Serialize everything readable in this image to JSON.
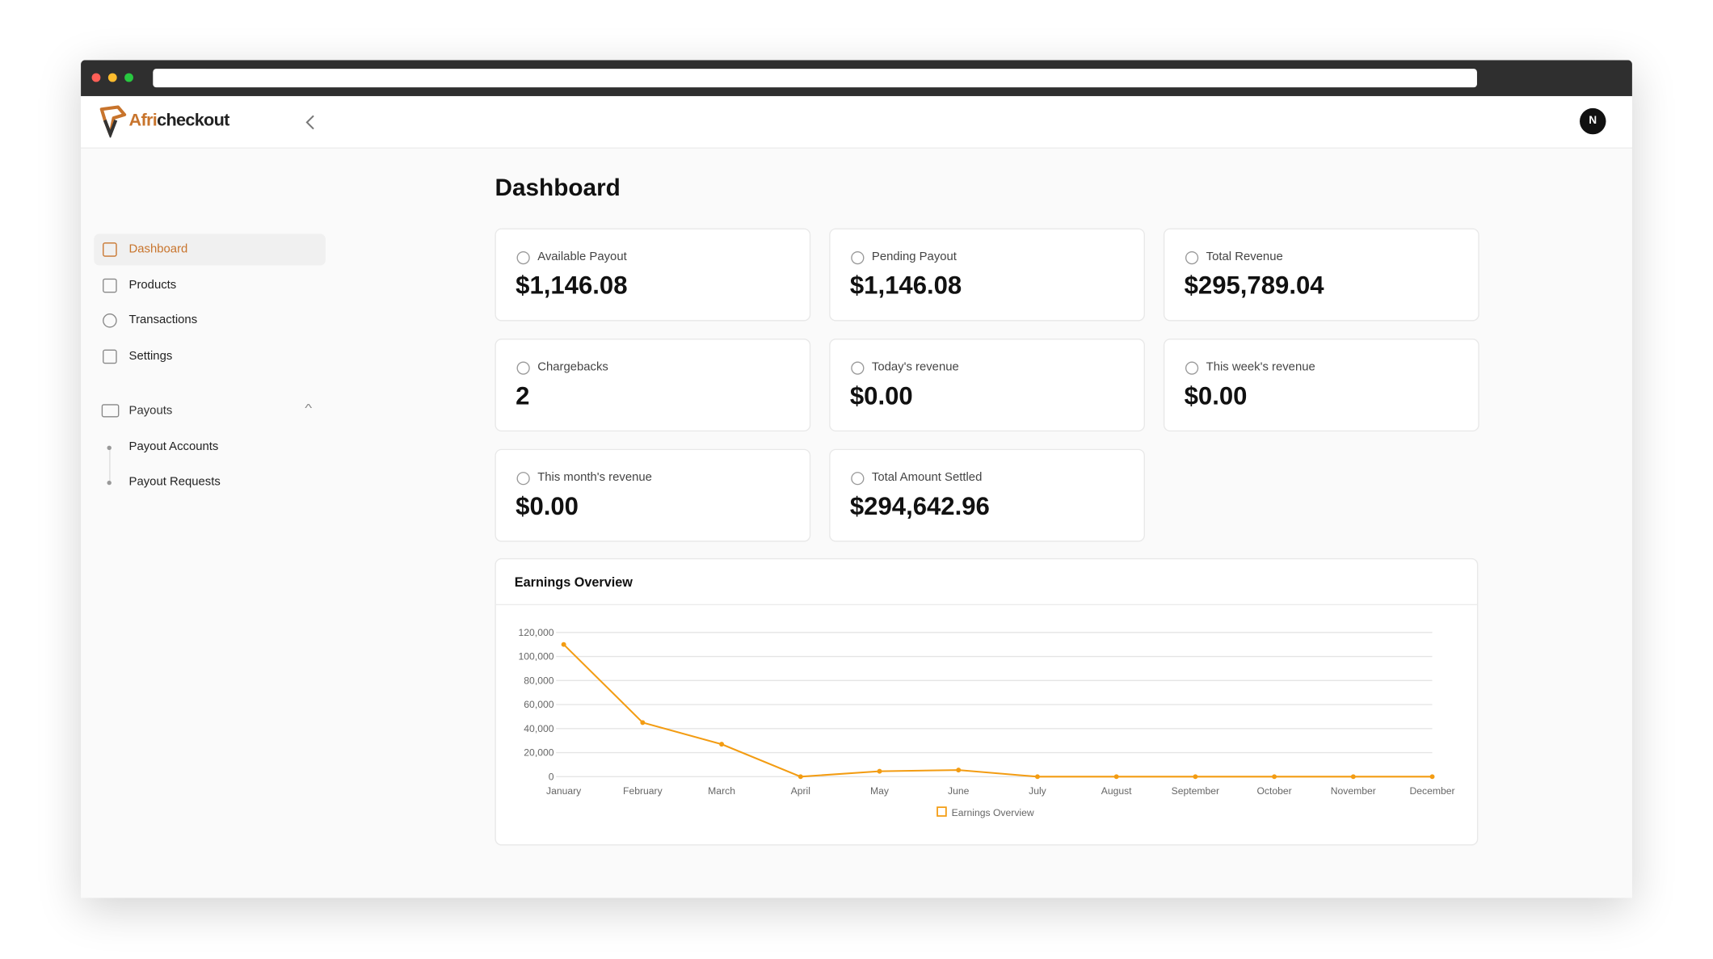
{
  "brand": {
    "prefix": "Afri",
    "suffix": "checkout"
  },
  "avatar": "N",
  "nav": [
    "Dashboard",
    "Products",
    "Transactions",
    "Settings"
  ],
  "payouts": {
    "label": "Payouts",
    "children": [
      "Payout Accounts",
      "Payout Requests"
    ]
  },
  "page_title": "Dashboard",
  "cards": [
    {
      "label": "Available Payout",
      "value": "$1,146.08"
    },
    {
      "label": "Pending Payout",
      "value": "$1,146.08"
    },
    {
      "label": "Total Revenue",
      "value": "$295,789.04"
    },
    {
      "label": "Chargebacks",
      "value": "2"
    },
    {
      "label": "Today's revenue",
      "value": "$0.00"
    },
    {
      "label": "This week's revenue",
      "value": "$0.00"
    },
    {
      "label": "This month's revenue",
      "value": "$0.00"
    },
    {
      "label": "Total Amount Settled",
      "value": "$294,642.96"
    }
  ],
  "chart_data": {
    "type": "line",
    "title": "Earnings Overview",
    "categories": [
      "January",
      "February",
      "March",
      "April",
      "May",
      "June",
      "July",
      "August",
      "September",
      "October",
      "November",
      "December"
    ],
    "series": [
      {
        "name": "Earnings Overview",
        "color": "#f39c12",
        "values": [
          110000,
          45000,
          27000,
          0,
          4500,
          5500,
          0,
          0,
          0,
          0,
          0,
          0
        ]
      }
    ],
    "ylim": [
      0,
      120000
    ],
    "yticks": [
      0,
      {
        "value": 20000,
        "label": "20,000"
      },
      {
        "value": 40000,
        "label": "40,000"
      },
      {
        "value": 60000,
        "label": "60,000"
      },
      {
        "value": 80000,
        "label": "80,000"
      },
      {
        "value": 100000,
        "label": "100,000"
      },
      {
        "value": 120000,
        "label": "120,000"
      }
    ],
    "grid": true,
    "legend": "bottom"
  }
}
